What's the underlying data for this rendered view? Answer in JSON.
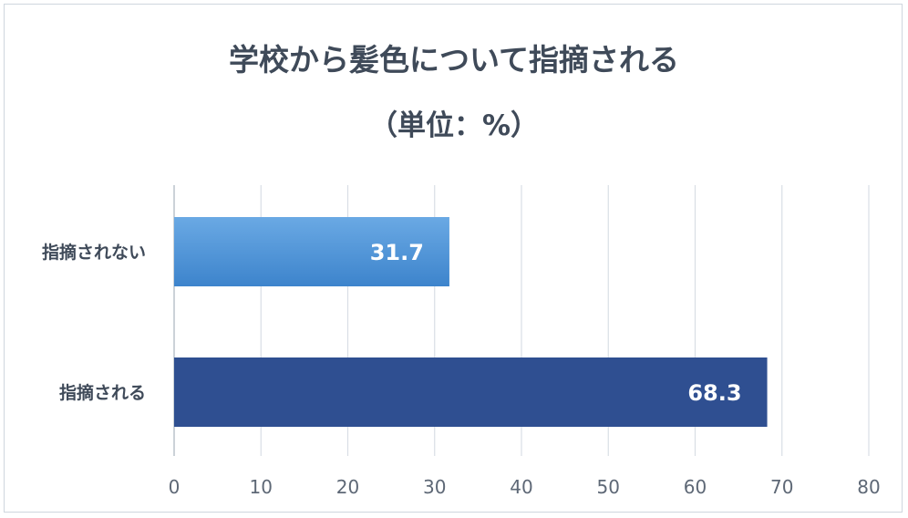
{
  "chart_data": {
    "type": "bar",
    "orientation": "horizontal",
    "title": "学校から髪色について指摘される",
    "subtitle": "（単位：%）",
    "categories": [
      "指摘されない",
      "指摘される"
    ],
    "values": [
      31.7,
      68.3
    ],
    "data_labels": [
      "31.7",
      "68.3"
    ],
    "xlim": [
      0,
      80
    ],
    "xticks": [
      0,
      10,
      20,
      30,
      40,
      50,
      60,
      70,
      80
    ],
    "tick_labels": [
      "0",
      "10",
      "20",
      "30",
      "40",
      "50",
      "60",
      "70",
      "80"
    ],
    "grid": true,
    "legend": "none",
    "colors": {
      "bar_1_top": "#6aa9e4",
      "bar_1_bottom": "#3d84cc",
      "bar_2": "#2f4f91",
      "text": "#3f4a59",
      "grid": "#d9dee5"
    }
  }
}
